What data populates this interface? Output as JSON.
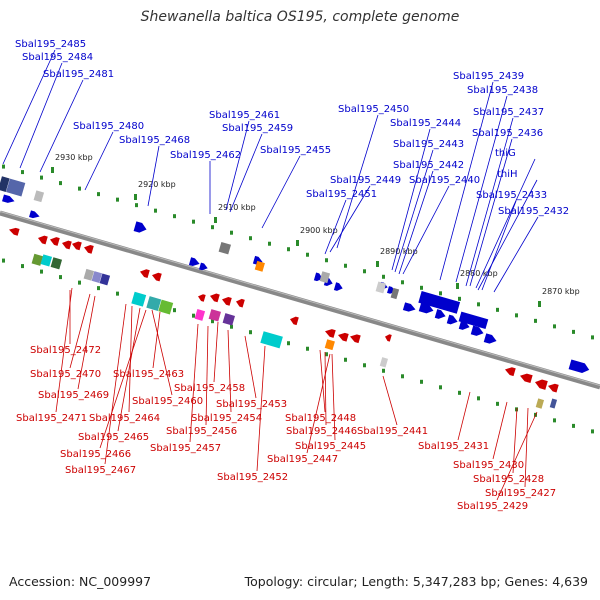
{
  "title": "Shewanella baltica OS195, complete genome",
  "footer": {
    "accession": "Accession: NC_009997",
    "summary": "Topology: circular; Length: 5,347,283 bp; Genes: 4,639"
  },
  "colors": {
    "forward": "#0000cc",
    "reverse": "#cc0000",
    "backbone": "#888888",
    "ticks": "#2a8a2a"
  },
  "ticks": [
    "2930 kbp",
    "2920 kbp",
    "2910 kbp",
    "2900 kbp",
    "2890 kbp",
    "2880 kbp",
    "2870 kbp"
  ],
  "forward_labels": [
    "Sbal195_2485",
    "Sbal195_2484",
    "Sbal195_2481",
    "Sbal195_2480",
    "Sbal195_2468",
    "Sbal195_2461",
    "Sbal195_2459",
    "Sbal195_2462",
    "Sbal195_2455",
    "Sbal195_2450",
    "Sbal195_2449",
    "Sbal195_2451",
    "Sbal195_2444",
    "Sbal195_2443",
    "Sbal195_2442",
    "Sbal195_2440",
    "Sbal195_2439",
    "Sbal195_2438",
    "Sbal195_2437",
    "Sbal195_2436",
    "thiG",
    "thiH",
    "Sbal195_2433",
    "Sbal195_2432"
  ],
  "reverse_labels": [
    "Sbal195_2472",
    "Sbal195_2470",
    "Sbal195_2463",
    "Sbal195_2469",
    "Sbal195_2458",
    "Sbal195_2460",
    "Sbal195_2471",
    "Sbal195_2464",
    "Sbal195_2453",
    "Sbal195_2454",
    "Sbal195_2448",
    "Sbal195_2465",
    "Sbal195_2456",
    "Sbal195_2446",
    "Sbal195_2441",
    "Sbal195_2466",
    "Sbal195_2457",
    "Sbal195_2445",
    "Sbal195_2431",
    "Sbal195_2447",
    "Sbal195_2467",
    "Sbal195_2430",
    "Sbal195_2452",
    "Sbal195_2428",
    "Sbal195_2427",
    "Sbal195_2429"
  ]
}
